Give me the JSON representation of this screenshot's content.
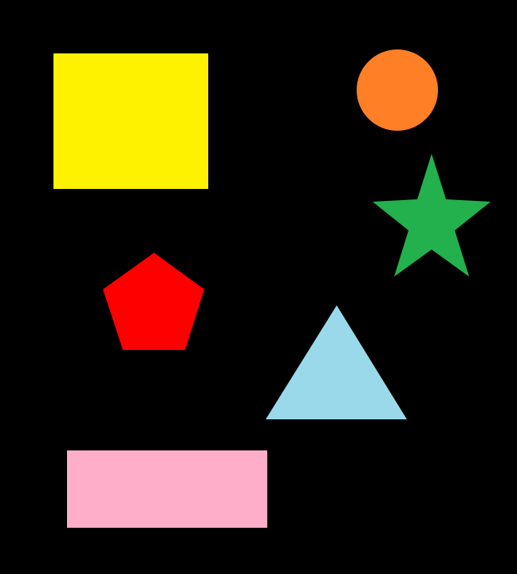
{
  "background_color": "#000000",
  "shapes": [
    {
      "kind": "square",
      "color": "#FFF200"
    },
    {
      "kind": "circle",
      "color": "#FF7F27"
    },
    {
      "kind": "star",
      "color": "#22B14C"
    },
    {
      "kind": "pentagon",
      "color": "#FF0000"
    },
    {
      "kind": "triangle",
      "color": "#99D9EA"
    },
    {
      "kind": "rectangle",
      "color": "#FFAEC9"
    }
  ]
}
